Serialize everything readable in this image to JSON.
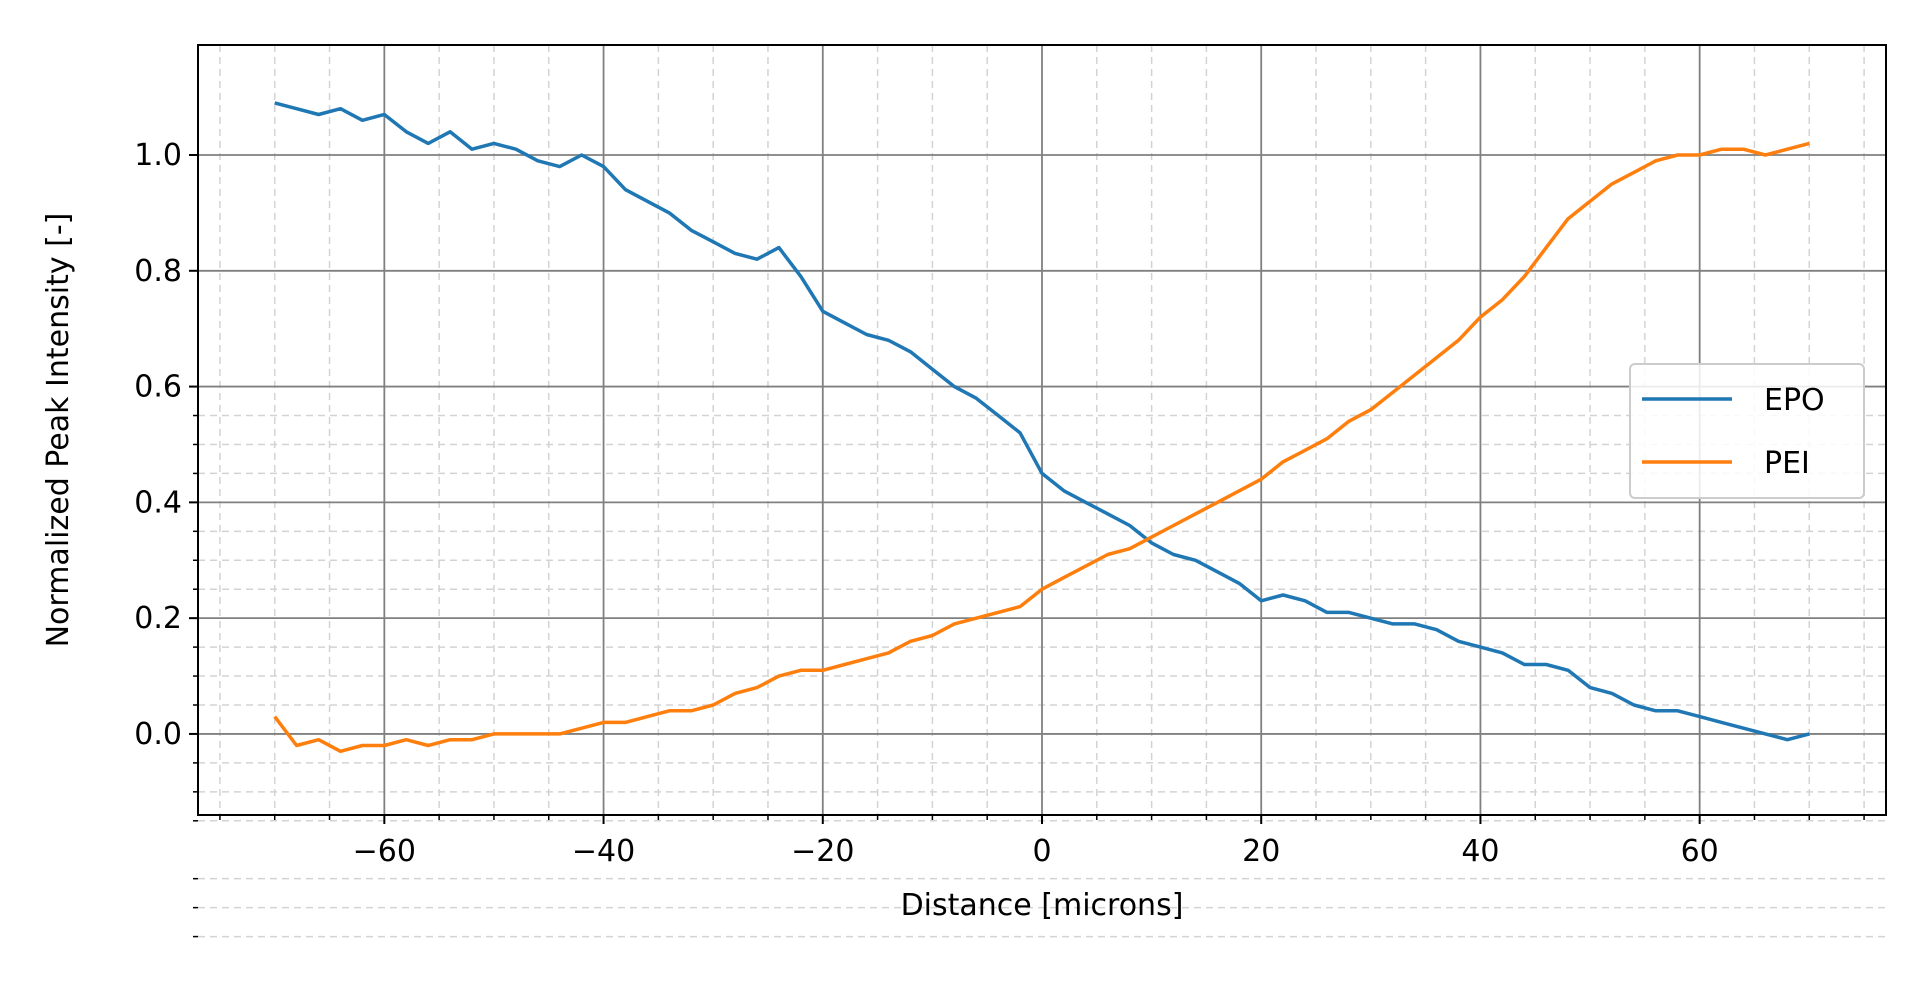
{
  "chart_data": {
    "type": "line",
    "title": "",
    "xlabel": "Distance [microns]",
    "ylabel": "Normalized Peak Intensity [-]",
    "xlim": [
      -77,
      77
    ],
    "ylim": [
      -0.14,
      1.19
    ],
    "grid": {
      "major": true,
      "minor": true
    },
    "legend_position": "center-right",
    "x_ticks": [
      -60,
      -40,
      -20,
      0,
      20,
      40,
      60
    ],
    "x_tick_labels": [
      "−60",
      "−40",
      "−20",
      "0",
      "20",
      "40",
      "60"
    ],
    "y_ticks": [
      0.0,
      0.2,
      0.4,
      0.6,
      0.8,
      1.0
    ],
    "y_tick_labels": [
      "0.0",
      "0.2",
      "0.4",
      "0.6",
      "0.8",
      "1.0"
    ],
    "colors": {
      "EPO": "#1f77b4",
      "PEI": "#ff7f0e",
      "major_grid": "#808080",
      "minor_grid": "#d3d3d3"
    },
    "series": [
      {
        "name": "EPO",
        "x": [
          -70,
          -68,
          -66,
          -64,
          -62,
          -60,
          -58,
          -56,
          -54,
          -52,
          -50,
          -48,
          -46,
          -44,
          -42,
          -40,
          -38,
          -36,
          -34,
          -32,
          -30,
          -28,
          -26,
          -24,
          -22,
          -20,
          -18,
          -16,
          -14,
          -12,
          -10,
          -8,
          -6,
          -4,
          -2,
          0,
          2,
          4,
          6,
          8,
          10,
          12,
          14,
          16,
          18,
          20,
          22,
          24,
          26,
          28,
          30,
          32,
          34,
          36,
          38,
          40,
          42,
          44,
          46,
          48,
          50,
          52,
          54,
          56,
          58,
          60,
          62,
          64,
          66,
          68,
          70
        ],
        "y": [
          1.09,
          1.08,
          1.07,
          1.08,
          1.06,
          1.07,
          1.04,
          1.02,
          1.04,
          1.01,
          1.02,
          1.01,
          0.99,
          0.98,
          1.0,
          0.98,
          0.94,
          0.92,
          0.9,
          0.87,
          0.85,
          0.83,
          0.82,
          0.84,
          0.79,
          0.73,
          0.71,
          0.69,
          0.68,
          0.66,
          0.63,
          0.6,
          0.58,
          0.55,
          0.52,
          0.45,
          0.42,
          0.4,
          0.38,
          0.36,
          0.33,
          0.31,
          0.3,
          0.28,
          0.26,
          0.23,
          0.24,
          0.23,
          0.21,
          0.21,
          0.2,
          0.19,
          0.19,
          0.18,
          0.16,
          0.15,
          0.14,
          0.12,
          0.12,
          0.11,
          0.08,
          0.07,
          0.05,
          0.04,
          0.04,
          0.03,
          0.02,
          0.01,
          0.0,
          -0.01,
          0.0
        ]
      },
      {
        "name": "PEI",
        "x": [
          -70,
          -68,
          -66,
          -64,
          -62,
          -60,
          -58,
          -56,
          -54,
          -52,
          -50,
          -48,
          -46,
          -44,
          -42,
          -40,
          -38,
          -36,
          -34,
          -32,
          -30,
          -28,
          -26,
          -24,
          -22,
          -20,
          -18,
          -16,
          -14,
          -12,
          -10,
          -8,
          -6,
          -4,
          -2,
          0,
          2,
          4,
          6,
          8,
          10,
          12,
          14,
          16,
          18,
          20,
          22,
          24,
          26,
          28,
          30,
          32,
          34,
          36,
          38,
          40,
          42,
          44,
          46,
          48,
          50,
          52,
          54,
          56,
          58,
          60,
          62,
          64,
          66,
          68,
          70
        ],
        "y": [
          0.03,
          -0.02,
          -0.01,
          -0.03,
          -0.02,
          -0.02,
          -0.01,
          -0.02,
          -0.01,
          -0.01,
          0.0,
          0.0,
          0.0,
          0.0,
          0.01,
          0.02,
          0.02,
          0.03,
          0.04,
          0.04,
          0.05,
          0.07,
          0.08,
          0.1,
          0.11,
          0.11,
          0.12,
          0.13,
          0.14,
          0.16,
          0.17,
          0.19,
          0.2,
          0.21,
          0.22,
          0.25,
          0.27,
          0.29,
          0.31,
          0.32,
          0.34,
          0.36,
          0.38,
          0.4,
          0.42,
          0.44,
          0.47,
          0.49,
          0.51,
          0.54,
          0.56,
          0.59,
          0.62,
          0.65,
          0.68,
          0.72,
          0.75,
          0.79,
          0.84,
          0.89,
          0.92,
          0.95,
          0.97,
          0.99,
          1.0,
          1.0,
          1.01,
          1.01,
          1.0,
          1.01,
          1.02
        ]
      }
    ]
  }
}
